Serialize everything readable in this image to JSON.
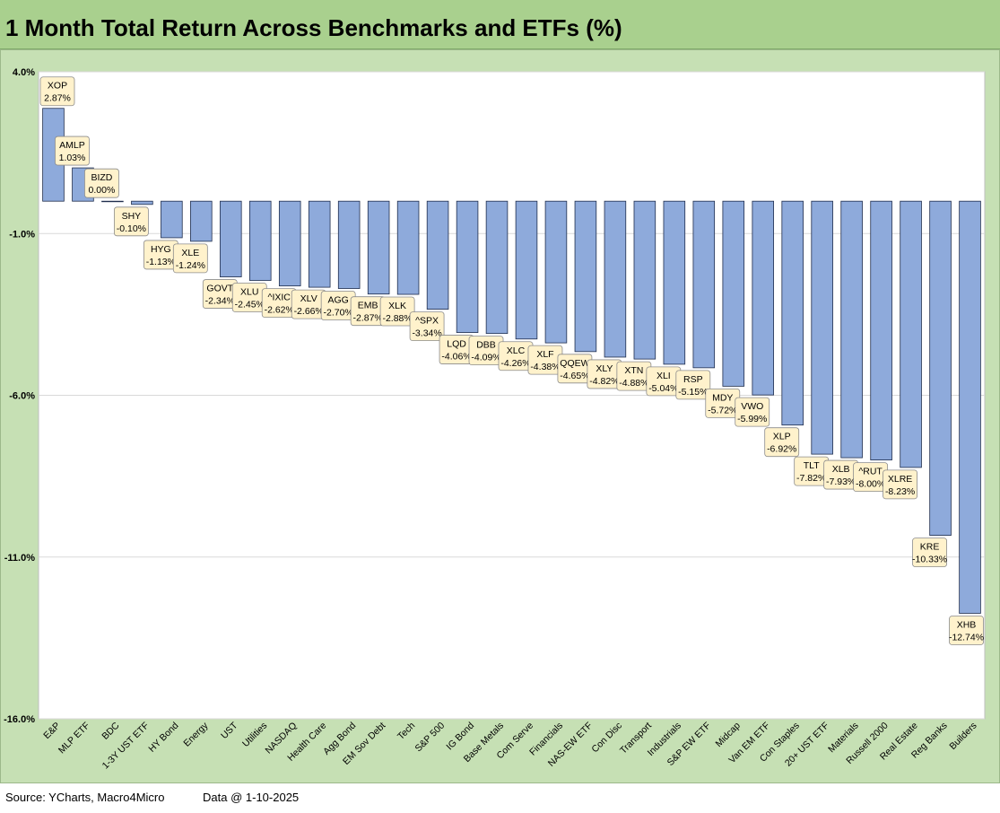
{
  "title": "1 Month Total Return Across Benchmarks and ETFs (%)",
  "footer": {
    "source": "Source: YCharts, Macro4Micro",
    "data_date": "Data @ 1-10-2025"
  },
  "colors": {
    "title_bg": "#a9d08e",
    "frame_bg": "#c6e0b4",
    "bar_fill": "#8eaadb",
    "bar_stroke": "#1f2d4d",
    "label_bg": "#fff2cc"
  },
  "chart_data": {
    "type": "bar",
    "title": "1 Month Total Return Across Benchmarks and ETFs (%)",
    "xlabel": "",
    "ylabel": "",
    "ylim": [
      -16,
      4
    ],
    "yticks": [
      "4.0%",
      "-1.0%",
      "-6.0%",
      "-11.0%",
      "-16.0%"
    ],
    "ytick_values": [
      4,
      -1,
      -6,
      -11,
      -16
    ],
    "grid": true,
    "categories": [
      "E&P",
      "MLP ETF",
      "BDC",
      "1-3Y UST ETF",
      "HY Bond",
      "Energy",
      "UST",
      "Utilities",
      "NASDAQ",
      "Health Care",
      "Agg Bond",
      "EM Sov Debt",
      "Tech",
      "S&P 500",
      "IG Bond",
      "Base Metals",
      "Com Serve",
      "Financials",
      "NAS-EW ETF",
      "Con Disc",
      "Transport",
      "Industrials",
      "S&P EW ETF",
      "Midcap",
      "Van EM ETF",
      "Con Staples",
      "20+ UST ETF",
      "Materials",
      "Russell 2000",
      "Real Estate",
      "Reg Banks",
      "Builders"
    ],
    "tickers": [
      "XOP",
      "AMLP",
      "BIZD",
      "SHY",
      "HYG",
      "XLE",
      "GOVT",
      "XLU",
      "^IXIC",
      "XLV",
      "AGG",
      "EMB",
      "XLK",
      "^SPX",
      "LQD",
      "DBB",
      "XLC",
      "XLF",
      "QQEW",
      "XLY",
      "XTN",
      "XLI",
      "RSP",
      "MDY",
      "VWO",
      "XLP",
      "TLT",
      "XLB",
      "^RUT",
      "XLRE",
      "KRE",
      "XHB"
    ],
    "value_labels": [
      "2.87%",
      "1.03%",
      "0.00%",
      "-0.10%",
      "-1.13%",
      "-1.24%",
      "-2.34%",
      "-2.45%",
      "-2.62%",
      "-2.66%",
      "-2.70%",
      "-2.87%",
      "-2.88%",
      "-3.34%",
      "-4.06%",
      "-4.09%",
      "-4.26%",
      "-4.38%",
      "-4.65%",
      "-4.82%",
      "-4.88%",
      "-5.04%",
      "-5.15%",
      "-5.72%",
      "-5.99%",
      "-6.92%",
      "-7.82%",
      "-7.93%",
      "-8.00%",
      "-8.23%",
      "-10.33%",
      "-12.74%"
    ],
    "values": [
      2.87,
      1.03,
      0.0,
      -0.1,
      -1.13,
      -1.24,
      -2.34,
      -2.45,
      -2.62,
      -2.66,
      -2.7,
      -2.87,
      -2.88,
      -3.34,
      -4.06,
      -4.09,
      -4.26,
      -4.38,
      -4.65,
      -4.82,
      -4.88,
      -5.04,
      -5.15,
      -5.72,
      -5.99,
      -6.92,
      -7.82,
      -7.93,
      -8.0,
      -8.23,
      -10.33,
      -12.74
    ]
  }
}
